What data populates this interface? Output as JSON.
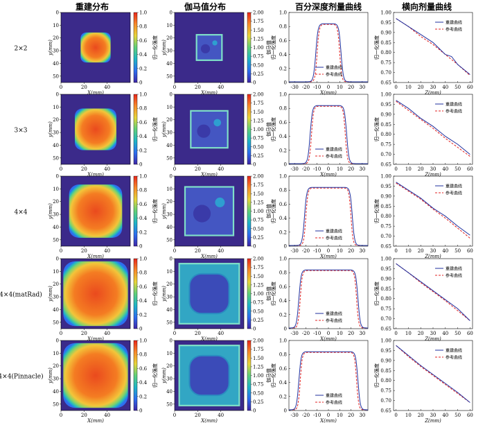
{
  "columns": [
    "重建分布",
    "伽马值分布",
    "百分深度剂量曲线",
    "横向剂量曲线"
  ],
  "rows": [
    "2×2",
    "3×3",
    "4×4",
    "4×4(matRad)",
    "4×4(Pinnacle)"
  ],
  "chart_data": {
    "panel_axes": {
      "reconstruction": {
        "type": "heatmap",
        "xlabel": "X(mm)",
        "ylabel": "y(mm)",
        "xticks": [
          0,
          20,
          40
        ],
        "yticks": [
          0,
          10,
          20,
          30,
          40,
          50
        ],
        "colorbar_label": "归一化强度",
        "colorbar_ticks": [
          "0",
          "0.2",
          "0.4",
          "0.6",
          "0.8",
          "1.0"
        ],
        "colormap": [
          "#3e26a8",
          "#2d6ff0",
          "#1fb6c8",
          "#5fd17a",
          "#e8d63a",
          "#f98b2a",
          "#e8261b"
        ]
      },
      "gamma": {
        "type": "heatmap",
        "xlabel": "X(mm)",
        "ylabel": "y(mm)",
        "xticks": [
          0,
          20,
          40
        ],
        "yticks": [
          0,
          10,
          20,
          30,
          40,
          50
        ],
        "colorbar_label": "伽马值",
        "colorbar_ticks": [
          "0",
          "0.25",
          "0.50",
          "0.75",
          "1.00",
          "1.25",
          "1.50",
          "1.75",
          "2.00"
        ]
      },
      "pdd": {
        "type": "line",
        "xlabel": "X(mm)",
        "ylabel": "归一化强度",
        "xticks": [
          -30,
          -20,
          -10,
          0,
          10,
          20,
          30
        ]
      },
      "lateral": {
        "type": "line",
        "xlabel": "Z(mm)",
        "ylabel": "归一化强度",
        "xticks": [
          0,
          10,
          20,
          30,
          40,
          50,
          60
        ],
        "yticks": [
          "0.65",
          "0.70",
          "0.75",
          "0.80",
          "0.85",
          "0.90",
          "0.95",
          "1.00"
        ],
        "ylim": [
          0.65,
          1.0
        ]
      }
    },
    "legend": [
      "重建曲线",
      "参考曲线"
    ],
    "series_colors": {
      "重建曲线": "#1f2f9e",
      "参考曲线": "#e02020"
    },
    "rows": [
      {
        "label": "2×2",
        "field_half_width_mm": 10,
        "pdd": {
          "peak": 0.82,
          "ylim": [
            0,
            1.0
          ],
          "yticks": [
            "0",
            "0.2",
            "0.4",
            "0.6",
            "0.8",
            "1.0"
          ]
        },
        "lateral": {
          "x": [
            0,
            10,
            20,
            30,
            40,
            45,
            50,
            60
          ],
          "recon": [
            0.97,
            0.93,
            0.89,
            0.85,
            0.79,
            0.78,
            0.74,
            0.69
          ],
          "ref": [
            0.97,
            0.93,
            0.88,
            0.84,
            0.79,
            0.765,
            0.74,
            0.685
          ]
        }
      },
      {
        "label": "3×3",
        "field_half_width_mm": 15,
        "pdd": {
          "peak": 0.82,
          "ylim": [
            0,
            1.0
          ],
          "yticks": [
            "0",
            "0.2",
            "0.4",
            "0.6",
            "0.8",
            "1.0"
          ]
        },
        "lateral": {
          "x": [
            0,
            10,
            20,
            30,
            40,
            50,
            60
          ],
          "recon": [
            0.97,
            0.93,
            0.88,
            0.84,
            0.79,
            0.75,
            0.7
          ],
          "ref": [
            0.965,
            0.92,
            0.875,
            0.83,
            0.78,
            0.735,
            0.69
          ]
        }
      },
      {
        "label": "4×4",
        "field_half_width_mm": 20,
        "pdd": {
          "peak": 0.82,
          "ylim": [
            0,
            1.0
          ],
          "yticks": [
            "0",
            "0.2",
            "0.4",
            "0.6",
            "0.8",
            "1.0"
          ]
        },
        "lateral": {
          "x": [
            0,
            10,
            20,
            30,
            40,
            50,
            60
          ],
          "recon": [
            0.97,
            0.93,
            0.89,
            0.84,
            0.8,
            0.75,
            0.705
          ],
          "ref": [
            0.965,
            0.925,
            0.885,
            0.835,
            0.79,
            0.74,
            0.69
          ]
        }
      },
      {
        "label": "4×4(matRad)",
        "field_half_width_mm": 25,
        "pdd": {
          "peak": 0.82,
          "ylim": [
            0,
            1.0
          ],
          "yticks": [
            "0",
            "0.2",
            "0.4",
            "0.6",
            "0.8",
            "1.0"
          ]
        },
        "lateral": {
          "x": [
            0,
            10,
            20,
            30,
            40,
            50,
            60
          ],
          "recon": [
            0.975,
            0.93,
            0.885,
            0.84,
            0.795,
            0.75,
            0.69
          ],
          "ref": [
            0.975,
            0.93,
            0.88,
            0.835,
            0.79,
            0.74,
            0.69
          ]
        }
      },
      {
        "label": "4×4(Pinnacle)",
        "field_half_width_mm": 25,
        "pdd": {
          "peak": 0.82,
          "ylim": [
            0,
            1.0
          ],
          "yticks": [
            "0",
            "0.2",
            "0.4",
            "0.6",
            "0.8",
            "1.0"
          ]
        },
        "lateral": {
          "x": [
            0,
            10,
            20,
            30,
            40,
            50,
            60
          ],
          "recon": [
            0.975,
            0.925,
            0.875,
            0.83,
            0.785,
            0.74,
            0.69
          ],
          "ref": [
            0.975,
            0.92,
            0.87,
            0.825,
            0.78,
            0.735,
            0.69
          ]
        }
      }
    ]
  }
}
